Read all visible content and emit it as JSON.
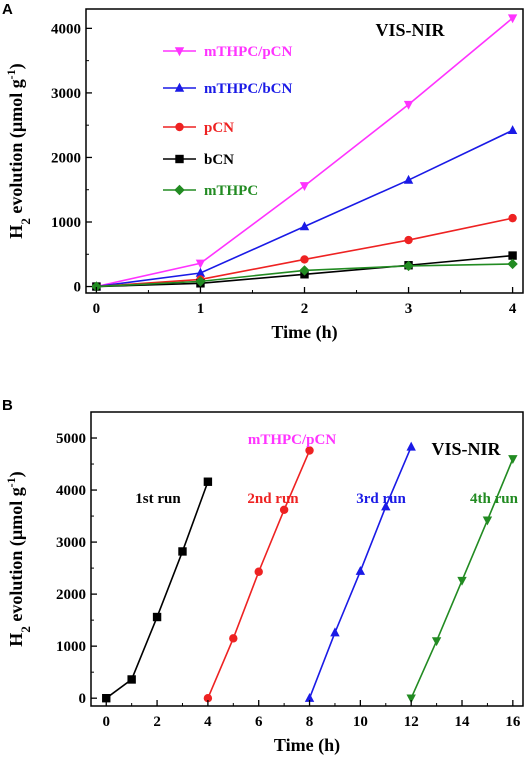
{
  "chart_data": [
    {
      "type": "line",
      "panel": "A",
      "annotation": "VIS-NIR",
      "xlabel": "Time (h)",
      "ylabel": {
        "pre": "H",
        "sub": "2",
        "mid": " evolution (µmol g",
        "sup": "-1",
        "post": ")"
      },
      "xlim": [
        -0.1,
        4.1
      ],
      "ylim": [
        -100,
        4300
      ],
      "xticks": [
        "0",
        "1",
        "2",
        "3",
        "4"
      ],
      "yticks": [
        "0",
        "1000",
        "2000",
        "3000",
        "4000"
      ],
      "x": [
        0,
        1,
        2,
        3,
        4
      ],
      "series": [
        {
          "name": "mTHPC/pCN",
          "color": "#ff33ff",
          "marker": "triangle-down",
          "values": [
            0,
            360,
            1560,
            2820,
            4160
          ]
        },
        {
          "name": "mTHPC/bCN",
          "color": "#1a1ae6",
          "marker": "triangle-up",
          "values": [
            0,
            210,
            930,
            1650,
            2420
          ]
        },
        {
          "name": "pCN",
          "color": "#ee2222",
          "marker": "circle",
          "values": [
            0,
            110,
            420,
            720,
            1060
          ]
        },
        {
          "name": "bCN",
          "color": "#000000",
          "marker": "square",
          "values": [
            0,
            50,
            190,
            330,
            480
          ]
        },
        {
          "name": "mTHPC",
          "color": "#228b22",
          "marker": "diamond",
          "values": [
            0,
            80,
            250,
            320,
            350
          ]
        }
      ]
    },
    {
      "type": "line",
      "panel": "B",
      "annotation": "VIS-NIR",
      "sample_label": "mTHPC/pCN",
      "sample_color": "#ff33ff",
      "xlabel": "Time (h)",
      "ylabel": {
        "pre": "H",
        "sub": "2",
        "mid": " evolution (µmol g",
        "sup": "-1",
        "post": ")"
      },
      "xlim": [
        -0.6,
        16.4
      ],
      "ylim": [
        -150,
        5500
      ],
      "xticks": [
        "0",
        "2",
        "4",
        "6",
        "8",
        "10",
        "12",
        "14",
        "16"
      ],
      "yticks": [
        "0",
        "1000",
        "2000",
        "3000",
        "4000",
        "5000"
      ],
      "series": [
        {
          "name": "1st run",
          "color": "#000000",
          "marker": "square",
          "x": [
            0,
            1,
            2,
            3,
            4
          ],
          "values": [
            0,
            360,
            1560,
            2820,
            4160
          ]
        },
        {
          "name": "2nd run",
          "color": "#ee2222",
          "marker": "circle",
          "x": [
            4,
            5,
            6,
            7,
            8
          ],
          "values": [
            0,
            1150,
            2430,
            3620,
            4760
          ]
        },
        {
          "name": "3rd run",
          "color": "#1a1ae6",
          "marker": "triangle-up",
          "x": [
            8,
            9,
            10,
            11,
            12
          ],
          "values": [
            0,
            1260,
            2440,
            3680,
            4830
          ]
        },
        {
          "name": "4th run",
          "color": "#228b22",
          "marker": "triangle-down",
          "x": [
            12,
            13,
            14,
            15,
            16
          ],
          "values": [
            0,
            1100,
            2260,
            3420,
            4600
          ]
        }
      ]
    }
  ]
}
